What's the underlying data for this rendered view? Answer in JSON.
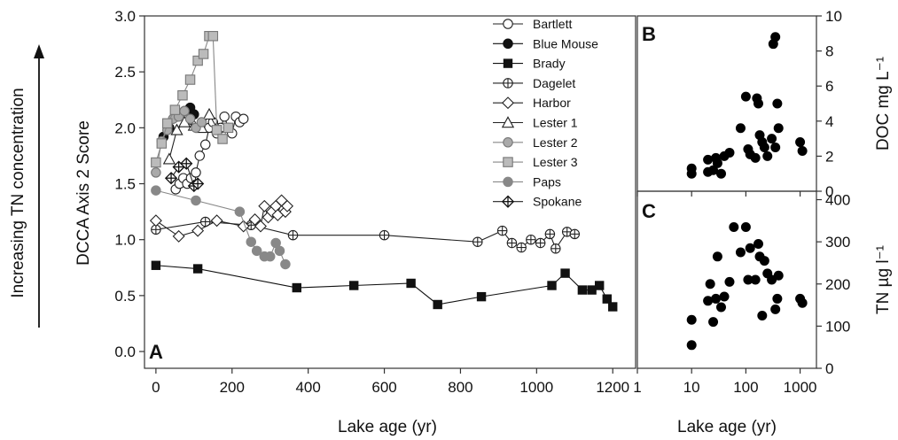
{
  "chart_data": [
    {
      "panel": "A",
      "type": "line",
      "xlabel": "Lake age (yr)",
      "ylabel": "DCCA Axis 2 Score",
      "side_label": "Increasing TN concentration",
      "xlim": [
        -30,
        1260
      ],
      "ylim": [
        -0.15,
        3.0
      ],
      "xticks": [
        "0",
        "200",
        "400",
        "600",
        "800",
        "1000",
        "1200"
      ],
      "yticks": [
        "0.0",
        "0.5",
        "1.0",
        "1.5",
        "2.0",
        "2.5",
        "3.0"
      ],
      "legend_position": "top-right",
      "series": [
        {
          "name": "Bartlett",
          "marker": "circle-open",
          "color": "#222222",
          "x": [
            52,
            62,
            72,
            82,
            92,
            105,
            115,
            130,
            140,
            150,
            160,
            170,
            180,
            190,
            200,
            210,
            220,
            230
          ],
          "y": [
            1.45,
            1.5,
            1.55,
            1.5,
            1.55,
            1.6,
            1.75,
            1.85,
            2.0,
            2.05,
            1.95,
            2.0,
            2.1,
            2.0,
            1.95,
            2.1,
            2.05,
            2.08
          ]
        },
        {
          "name": "Blue Mouse",
          "marker": "circle-filled",
          "color": "#111111",
          "x": [
            20,
            35,
            55,
            75,
            90,
            100
          ],
          "y": [
            1.92,
            2.0,
            2.1,
            2.15,
            2.18,
            2.12
          ]
        },
        {
          "name": "Brady",
          "marker": "square-filled",
          "color": "#111111",
          "x": [
            0,
            110,
            370,
            520,
            670,
            740,
            855,
            1040,
            1075,
            1120,
            1145,
            1165,
            1185,
            1200
          ],
          "y": [
            0.77,
            0.74,
            0.57,
            0.59,
            0.61,
            0.42,
            0.49,
            0.59,
            0.7,
            0.55,
            0.55,
            0.59,
            0.47,
            0.4
          ]
        },
        {
          "name": "Dagelet",
          "marker": "circle-cross",
          "color": "#222222",
          "x": [
            0,
            130,
            250,
            360,
            600,
            845,
            910,
            935,
            960,
            985,
            1010,
            1035,
            1050,
            1080,
            1100
          ],
          "y": [
            1.09,
            1.16,
            1.13,
            1.04,
            1.04,
            0.98,
            1.08,
            0.97,
            0.93,
            1.0,
            0.97,
            1.05,
            0.92,
            1.07,
            1.05
          ]
        },
        {
          "name": "Harbor",
          "marker": "diamond-open",
          "color": "#222222",
          "x": [
            0,
            60,
            110,
            160,
            230,
            260,
            275,
            285,
            295,
            305,
            315,
            320,
            330,
            340,
            345
          ],
          "y": [
            1.17,
            1.03,
            1.08,
            1.17,
            1.12,
            1.18,
            1.12,
            1.3,
            1.2,
            1.25,
            1.3,
            1.22,
            1.35,
            1.25,
            1.3
          ]
        },
        {
          "name": "Lester 1",
          "marker": "triangle-open",
          "color": "#222222",
          "x": [
            35,
            55,
            75,
            100,
            120,
            140,
            160
          ],
          "y": [
            1.72,
            1.98,
            2.05,
            2.02,
            2.0,
            2.12,
            2.0
          ]
        },
        {
          "name": "Lester 2",
          "marker": "circle-gray",
          "color": "#888888",
          "x": [
            0,
            15,
            30,
            45,
            60,
            75,
            90,
            105,
            120
          ],
          "y": [
            1.6,
            1.88,
            1.98,
            2.08,
            2.1,
            2.15,
            2.08,
            2.0,
            2.05
          ]
        },
        {
          "name": "Lester 3",
          "marker": "square-gray",
          "color": "#888888",
          "x": [
            0,
            15,
            30,
            50,
            70,
            90,
            110,
            125,
            140,
            150,
            160,
            175,
            190
          ],
          "y": [
            1.69,
            1.86,
            2.04,
            2.16,
            2.29,
            2.43,
            2.6,
            2.66,
            2.82,
            2.82,
            1.98,
            1.9,
            2.0
          ]
        },
        {
          "name": "Paps",
          "marker": "circle-gray-filled",
          "color": "#888888",
          "x": [
            0,
            105,
            220,
            250,
            265,
            285,
            300,
            315,
            325,
            340
          ],
          "y": [
            1.44,
            1.35,
            1.25,
            0.98,
            0.9,
            0.85,
            0.85,
            0.97,
            0.9,
            0.78
          ]
        },
        {
          "name": "Spokane",
          "marker": "diamond-cross",
          "color": "#222222",
          "x": [
            40,
            60,
            80,
            100,
            110
          ],
          "y": [
            1.55,
            1.65,
            1.68,
            1.48,
            1.5
          ]
        }
      ]
    },
    {
      "panel": "B",
      "type": "scatter",
      "ylabel": "DOC mg L⁻¹",
      "xscale": "log",
      "xlim": [
        1,
        2000
      ],
      "ylim": [
        0,
        10
      ],
      "yticks": [
        "0",
        "2",
        "4",
        "6",
        "8",
        "10"
      ],
      "points": {
        "x": [
          10,
          10,
          20,
          20,
          25,
          28,
          30,
          35,
          40,
          50,
          80,
          100,
          110,
          120,
          150,
          160,
          170,
          180,
          200,
          220,
          250,
          300,
          320,
          350,
          350,
          380,
          400,
          1000,
          1100
        ],
        "y": [
          1.0,
          1.3,
          1.8,
          1.1,
          1.2,
          1.9,
          1.6,
          1.0,
          2.0,
          2.2,
          3.6,
          5.4,
          2.4,
          2.1,
          1.9,
          5.3,
          5.0,
          3.2,
          2.8,
          2.5,
          2.0,
          3.0,
          8.4,
          8.8,
          2.5,
          5.0,
          3.6,
          2.8,
          2.3
        ]
      }
    },
    {
      "panel": "C",
      "type": "scatter",
      "xlabel": "Lake age (yr)",
      "ylabel": "TN µg l⁻¹",
      "xscale": "log",
      "xlim": [
        1,
        2000
      ],
      "ylim": [
        0,
        420
      ],
      "xticks": [
        "1",
        "10",
        "100",
        "1000"
      ],
      "yticks": [
        "0",
        "100",
        "200",
        "300",
        "400"
      ],
      "points": {
        "x": [
          10,
          10,
          20,
          22,
          25,
          28,
          30,
          35,
          40,
          50,
          60,
          80,
          100,
          110,
          120,
          150,
          170,
          180,
          200,
          220,
          250,
          300,
          350,
          380,
          400,
          1000,
          1100
        ],
        "y": [
          55,
          115,
          160,
          200,
          110,
          165,
          265,
          145,
          170,
          205,
          335,
          275,
          335,
          210,
          285,
          210,
          295,
          265,
          125,
          255,
          225,
          210,
          140,
          165,
          220,
          165,
          155
        ]
      }
    }
  ]
}
